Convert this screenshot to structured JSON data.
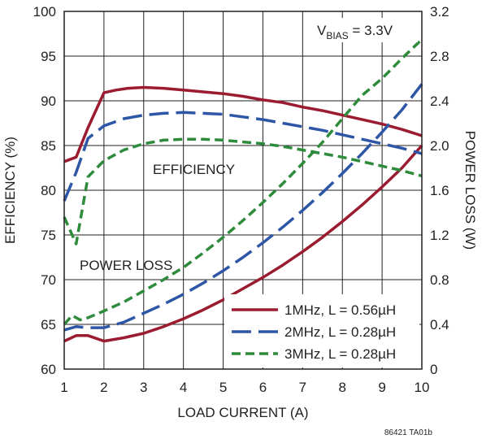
{
  "chart_data": {
    "type": "line",
    "xlabel": "LOAD CURRENT (A)",
    "ylabel_left": "EFFICIENCY (%)",
    "ylabel_right": "POWER LOSS (W)",
    "xlim": [
      1,
      10
    ],
    "ylim_left": [
      60,
      100
    ],
    "ylim_right": [
      0,
      3.2
    ],
    "x_ticks": [
      "1",
      "2",
      "3",
      "4",
      "5",
      "6",
      "7",
      "8",
      "9",
      "10"
    ],
    "y_ticks_left": [
      "60",
      "65",
      "70",
      "75",
      "80",
      "85",
      "90",
      "95",
      "100"
    ],
    "y_ticks_right": [
      "0",
      "0.4",
      "0.8",
      "1.2",
      "1.6",
      "2.0",
      "2.4",
      "2.8",
      "3.2"
    ],
    "grid": true,
    "legend_position": "bottom-right",
    "annotations": {
      "efficiency_label": "EFFICIENCY",
      "power_loss_label": "POWER LOSS",
      "bias_main": "V",
      "bias_sub": "BIAS",
      "bias_value": " = 3.3V"
    },
    "part_number": "86421 TA01b",
    "series": [
      {
        "name": "1MHz, L = 0.56µH",
        "color": "#9b1b30",
        "dash": "solid",
        "efficiency": {
          "x": [
            1,
            1.3,
            1.6,
            2.0,
            2.3,
            2.6,
            3.0,
            3.5,
            4.0,
            4.5,
            5.0,
            5.5,
            6.0,
            6.5,
            7.0,
            7.5,
            8.0,
            8.5,
            9.0,
            9.5,
            10.0
          ],
          "y": [
            83.2,
            83.7,
            87.0,
            90.9,
            91.2,
            91.4,
            91.5,
            91.4,
            91.2,
            91.0,
            90.8,
            90.5,
            90.1,
            89.8,
            89.3,
            88.9,
            88.4,
            87.9,
            87.4,
            86.8,
            86.1
          ]
        },
        "power_loss": {
          "x": [
            1,
            1.3,
            1.6,
            2.0,
            2.5,
            3.0,
            3.5,
            4.0,
            4.5,
            5.0,
            5.5,
            6.0,
            6.5,
            7.0,
            7.5,
            8.0,
            8.5,
            9.0,
            9.5,
            10.0
          ],
          "y": [
            0.25,
            0.3,
            0.3,
            0.25,
            0.28,
            0.32,
            0.38,
            0.45,
            0.53,
            0.62,
            0.72,
            0.82,
            0.93,
            1.05,
            1.18,
            1.32,
            1.47,
            1.63,
            1.8,
            2.0
          ]
        }
      },
      {
        "name": "2MHz, L = 0.28µH",
        "color": "#2e56a6",
        "dash": "long-dash",
        "efficiency": {
          "x": [
            1,
            1.3,
            1.6,
            2.0,
            2.5,
            3.0,
            3.5,
            4.0,
            4.5,
            5.0,
            5.5,
            6.0,
            6.5,
            7.0,
            7.5,
            8.0,
            8.5,
            9.0,
            9.5,
            10.0
          ],
          "y": [
            78.8,
            82.0,
            85.8,
            87.2,
            88.0,
            88.4,
            88.6,
            88.7,
            88.6,
            88.5,
            88.2,
            87.9,
            87.5,
            87.1,
            86.7,
            86.2,
            85.7,
            85.2,
            84.7,
            84.1
          ]
        },
        "power_loss": {
          "x": [
            1,
            1.3,
            1.6,
            2.0,
            2.5,
            3.0,
            3.5,
            4.0,
            4.5,
            5.0,
            5.5,
            6.0,
            6.5,
            7.0,
            7.5,
            8.0,
            8.5,
            9.0,
            9.5,
            10.0
          ],
          "y": [
            0.35,
            0.38,
            0.37,
            0.37,
            0.42,
            0.5,
            0.58,
            0.67,
            0.77,
            0.88,
            1.0,
            1.13,
            1.27,
            1.42,
            1.58,
            1.75,
            1.93,
            2.12,
            2.32,
            2.55
          ]
        }
      },
      {
        "name": "3MHz, L = 0.28µH",
        "color": "#2e8b3c",
        "dash": "short-dash",
        "efficiency": {
          "x": [
            1,
            1.3,
            1.6,
            2.0,
            2.5,
            3.0,
            3.5,
            4.0,
            4.5,
            5.0,
            5.5,
            6.0,
            6.5,
            7.0,
            7.5,
            8.0,
            8.5,
            9.0,
            9.5,
            10.0
          ],
          "y": [
            77.0,
            74.0,
            81.5,
            83.3,
            84.5,
            85.2,
            85.6,
            85.7,
            85.7,
            85.6,
            85.4,
            85.2,
            84.9,
            84.5,
            84.1,
            83.7,
            83.2,
            82.7,
            82.2,
            81.6
          ]
        },
        "power_loss": {
          "x": [
            1,
            1.2,
            1.4,
            1.6,
            2.0,
            2.5,
            3.0,
            3.5,
            4.0,
            4.5,
            5.0,
            5.5,
            6.0,
            6.5,
            7.0,
            7.5,
            8.0,
            8.5,
            9.0,
            9.5,
            10.0
          ],
          "y": [
            0.4,
            0.48,
            0.44,
            0.46,
            0.52,
            0.6,
            0.7,
            0.8,
            0.91,
            1.04,
            1.18,
            1.33,
            1.49,
            1.66,
            1.84,
            2.03,
            2.24,
            2.45,
            2.6,
            2.78,
            2.95
          ]
        }
      }
    ]
  }
}
